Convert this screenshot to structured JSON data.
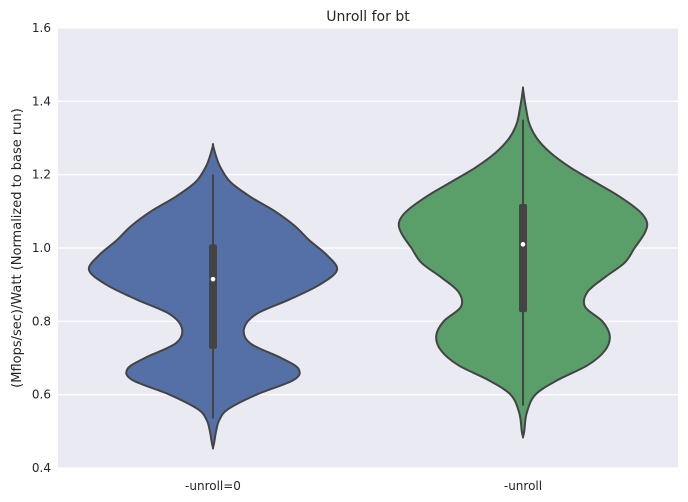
{
  "chart_data": {
    "type": "violin",
    "title": "Unroll for bt",
    "xlabel": "",
    "ylabel": "(Mflops/sec)/Watt (Normalized to base run)",
    "ylim": [
      0.4,
      1.6
    ],
    "yticks": [
      "0.4",
      "0.6",
      "0.8",
      "1.0",
      "1.2",
      "1.4",
      "1.6"
    ],
    "grid": true,
    "categories": [
      "-unroll=0",
      "-unroll"
    ],
    "series": [
      {
        "category": "-unroll=0",
        "color": "#5470a6",
        "median": 0.915,
        "q1": 0.725,
        "q3": 1.01,
        "whisker_low": 0.535,
        "whisker_high": 1.2,
        "density_min": 0.455,
        "density_max": 1.28,
        "profile": [
          [
            0.455,
            0.0
          ],
          [
            0.47,
            0.01
          ],
          [
            0.5,
            0.025
          ],
          [
            0.53,
            0.05
          ],
          [
            0.56,
            0.12
          ],
          [
            0.6,
            0.35
          ],
          [
            0.64,
            0.65
          ],
          [
            0.67,
            0.69
          ],
          [
            0.7,
            0.55
          ],
          [
            0.74,
            0.3
          ],
          [
            0.78,
            0.25
          ],
          [
            0.82,
            0.35
          ],
          [
            0.86,
            0.62
          ],
          [
            0.9,
            0.86
          ],
          [
            0.94,
            1.0
          ],
          [
            0.98,
            0.92
          ],
          [
            1.02,
            0.78
          ],
          [
            1.06,
            0.66
          ],
          [
            1.1,
            0.5
          ],
          [
            1.14,
            0.3
          ],
          [
            1.18,
            0.14
          ],
          [
            1.22,
            0.06
          ],
          [
            1.25,
            0.025
          ],
          [
            1.28,
            0.0
          ]
        ]
      },
      {
        "category": "-unroll",
        "color": "#5a9e6a",
        "median": 1.01,
        "q1": 0.825,
        "q3": 1.12,
        "whisker_low": 0.57,
        "whisker_high": 1.35,
        "density_min": 0.485,
        "density_max": 1.435,
        "profile": [
          [
            0.485,
            0.0
          ],
          [
            0.5,
            0.01
          ],
          [
            0.55,
            0.03
          ],
          [
            0.6,
            0.1
          ],
          [
            0.64,
            0.28
          ],
          [
            0.68,
            0.52
          ],
          [
            0.72,
            0.66
          ],
          [
            0.76,
            0.7
          ],
          [
            0.8,
            0.64
          ],
          [
            0.84,
            0.5
          ],
          [
            0.88,
            0.52
          ],
          [
            0.92,
            0.66
          ],
          [
            0.96,
            0.82
          ],
          [
            1.0,
            0.9
          ],
          [
            1.04,
            0.98
          ],
          [
            1.07,
            1.0
          ],
          [
            1.1,
            0.94
          ],
          [
            1.14,
            0.78
          ],
          [
            1.18,
            0.58
          ],
          [
            1.22,
            0.38
          ],
          [
            1.26,
            0.22
          ],
          [
            1.3,
            0.11
          ],
          [
            1.34,
            0.05
          ],
          [
            1.38,
            0.025
          ],
          [
            1.41,
            0.01
          ],
          [
            1.435,
            0.0
          ]
        ]
      }
    ]
  }
}
